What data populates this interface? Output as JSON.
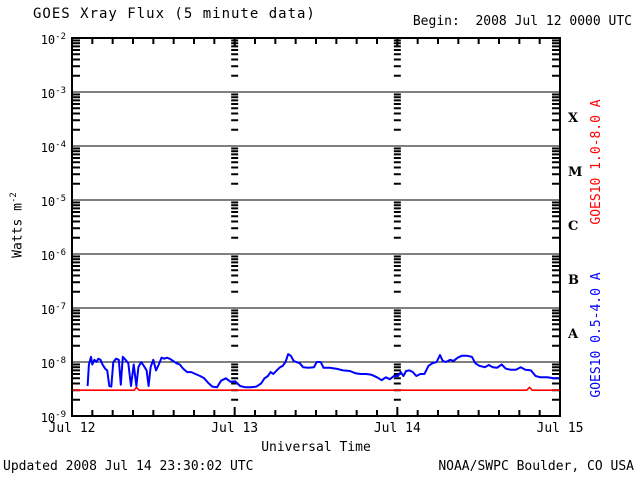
{
  "header": {
    "title": "GOES Xray Flux (5 minute data)",
    "begin": "Begin:  2008 Jul 12 0000 UTC"
  },
  "footer": {
    "updated": "Updated 2008 Jul 14 23:30:02 UTC",
    "org": "NOAA/SWPC Boulder, CO USA"
  },
  "chart_data": {
    "type": "line",
    "title": "GOES Xray Flux (5 minute data)",
    "xlabel": "Universal Time",
    "ylabel_main": "Watts m",
    "ylabel_sup": "-2",
    "x_scale": "hours since 2008 Jul 12 0000 UTC",
    "xlim_hours": [
      0,
      72
    ],
    "x_ticks": [
      {
        "label": "Jul 12",
        "hour": 0
      },
      {
        "label": "Jul 13",
        "hour": 24
      },
      {
        "label": "Jul 14",
        "hour": 48
      },
      {
        "label": "Jul 15",
        "hour": 72
      }
    ],
    "x_minor_step_hours": 3,
    "y_scale": "log",
    "ylim": [
      1e-09,
      0.01
    ],
    "y_decade_exponents": [
      -2,
      -3,
      -4,
      -5,
      -6,
      -7,
      -8,
      -9
    ],
    "y_tick_base": "10",
    "grid": {
      "horizontal_decade_lines": true,
      "interior_day_tick_columns_hours": [
        24,
        48
      ]
    },
    "flare_classes": [
      {
        "label": "X",
        "mid_exponent": -3.5
      },
      {
        "label": "M",
        "mid_exponent": -4.5
      },
      {
        "label": "C",
        "mid_exponent": -5.5
      },
      {
        "label": "B",
        "mid_exponent": -6.5
      },
      {
        "label": "A",
        "mid_exponent": -7.5
      }
    ],
    "legend_position": "right-rotated",
    "series": [
      {
        "name": "GOES10 1.0-8.0 A",
        "color": "#ff0000",
        "x": [
          0,
          9.2,
          9.5,
          9.9,
          24,
          48,
          67.1,
          67.5,
          67.9,
          72
        ],
        "y": [
          3e-09,
          3e-09,
          3.4e-09,
          3e-09,
          3e-09,
          3e-09,
          3e-09,
          3.4e-09,
          3e-09,
          3e-09
        ]
      },
      {
        "name": "GOES10 0.5-4.0 A",
        "color": "#0000ff",
        "x": [
          2.3,
          2.5,
          2.8,
          3.0,
          3.3,
          3.6,
          3.9,
          4.2,
          4.5,
          4.9,
          5.2,
          5.5,
          5.8,
          6.1,
          6.5,
          6.9,
          7.2,
          7.5,
          7.9,
          8.3,
          8.7,
          9.1,
          9.5,
          9.8,
          10.2,
          10.6,
          11.0,
          11.3,
          11.6,
          12.0,
          12.4,
          12.8,
          13.2,
          13.6,
          14.0,
          14.4,
          14.9,
          15.4,
          15.9,
          16.4,
          17.0,
          17.6,
          18.2,
          18.9,
          19.5,
          20.1,
          20.7,
          21.4,
          22.0,
          22.7,
          23.4,
          24.1,
          24.8,
          25.6,
          26.4,
          27.2,
          27.9,
          28.4,
          28.9,
          29.3,
          29.7,
          30.2,
          30.7,
          31.1,
          31.5,
          31.9,
          32.3,
          32.7,
          33.1,
          33.6,
          34.1,
          34.9,
          35.7,
          36.1,
          36.7,
          37.1,
          38.0,
          39.0,
          40.0,
          41.0,
          41.8,
          42.6,
          43.4,
          44.2,
          45.0,
          45.7,
          46.3,
          46.9,
          47.5,
          48.1,
          48.5,
          48.9,
          49.3,
          49.8,
          50.3,
          50.8,
          51.4,
          52.0,
          52.6,
          53.2,
          53.8,
          54.3,
          54.7,
          55.2,
          55.8,
          56.3,
          56.9,
          57.5,
          58.3,
          59.0,
          59.5,
          60.1,
          60.9,
          61.5,
          62.1,
          62.7,
          63.4,
          64.0,
          64.7,
          65.5,
          66.2,
          66.9,
          67.7,
          68.4,
          69.1,
          70.1,
          71.1,
          72.0
        ],
        "y": [
          3.6e-09,
          9e-09,
          1.25e-08,
          9e-09,
          1.1e-08,
          1e-08,
          1.15e-08,
          1.1e-08,
          9e-09,
          7.5e-09,
          7e-09,
          3.6e-09,
          3.5e-09,
          1e-08,
          1.15e-08,
          1.1e-08,
          3.8e-09,
          1.25e-08,
          1.1e-08,
          9.5e-09,
          3.6e-09,
          9e-09,
          3.6e-09,
          8e-09,
          1e-08,
          8.5e-09,
          7e-09,
          3.6e-09,
          8e-09,
          1.1e-08,
          7e-09,
          9e-09,
          1.2e-08,
          1.15e-08,
          1.2e-08,
          1.15e-08,
          1.05e-08,
          9.5e-09,
          9e-09,
          7.5e-09,
          6.5e-09,
          6.5e-09,
          6e-09,
          5.5e-09,
          5e-09,
          4.1e-09,
          3.5e-09,
          3.4e-09,
          4.5e-09,
          5e-09,
          4.3e-09,
          4.4e-09,
          3.6e-09,
          3.4e-09,
          3.4e-09,
          3.5e-09,
          4e-09,
          5e-09,
          5.5e-09,
          6.5e-09,
          6e-09,
          7e-09,
          8e-09,
          8.5e-09,
          1e-08,
          1.4e-08,
          1.3e-08,
          1.05e-08,
          1e-08,
          9.5e-09,
          8e-09,
          7.8e-09,
          8e-09,
          1e-08,
          1e-08,
          7.8e-09,
          7.8e-09,
          7.5e-09,
          7e-09,
          6.8e-09,
          6.2e-09,
          6e-09,
          6e-09,
          5.8e-09,
          5.2e-09,
          4.6e-09,
          5.2e-09,
          4.8e-09,
          5.5e-09,
          5.5e-09,
          6.5e-09,
          5.5e-09,
          6.8e-09,
          7e-09,
          6.5e-09,
          5.5e-09,
          6e-09,
          6e-09,
          8.5e-09,
          9.5e-09,
          1e-08,
          1.35e-08,
          1.05e-08,
          1e-08,
          1.1e-08,
          1.05e-08,
          1.2e-08,
          1.3e-08,
          1.3e-08,
          1.25e-08,
          9.5e-09,
          8.5e-09,
          8e-09,
          8.8e-09,
          8e-09,
          7.8e-09,
          9e-09,
          7.5e-09,
          7.2e-09,
          7.2e-09,
          8e-09,
          7.2e-09,
          7e-09,
          5.5e-09,
          5.2e-09,
          5.2e-09,
          5e-09,
          5e-09
        ]
      }
    ]
  }
}
